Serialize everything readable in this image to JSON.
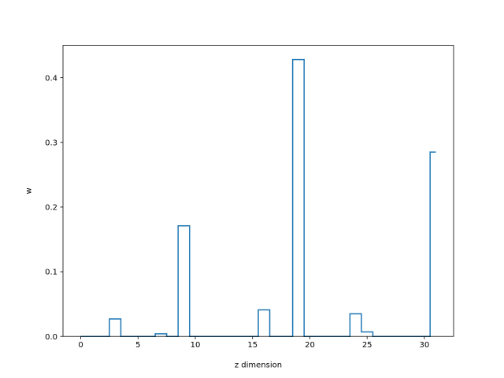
{
  "chart_data": {
    "type": "line",
    "drawstyle": "steps-mid",
    "title": "",
    "xlabel": "z dimension",
    "ylabel": "w",
    "xlim": [
      -1.55,
      32.55
    ],
    "ylim": [
      0,
      0.45
    ],
    "xticks": [
      0,
      5,
      10,
      15,
      20,
      25,
      30
    ],
    "xtick_labels": [
      "0",
      "5",
      "10",
      "15",
      "20",
      "25",
      "30"
    ],
    "yticks": [
      0.0,
      0.1,
      0.2,
      0.3,
      0.4
    ],
    "ytick_labels": [
      "0.0",
      "0.1",
      "0.2",
      "0.3",
      "0.4"
    ],
    "grid": false,
    "legend": "none",
    "series_color": "#1f77b4",
    "series": [
      {
        "x": [
          0,
          1,
          2,
          3,
          4,
          5,
          6,
          7,
          8,
          9,
          10,
          11,
          12,
          13,
          14,
          15,
          16,
          17,
          18,
          19,
          20,
          21,
          22,
          23,
          24,
          25,
          26,
          27,
          28,
          29,
          30,
          31
        ],
        "values": [
          0,
          0,
          0,
          0.027,
          0,
          0,
          0,
          0.004,
          0,
          0.171,
          0,
          0,
          0,
          0,
          0,
          0,
          0.041,
          0,
          0,
          0.428,
          0,
          0,
          0,
          0,
          0.035,
          0.007,
          0,
          0,
          0,
          0,
          0,
          0.285
        ]
      }
    ]
  }
}
